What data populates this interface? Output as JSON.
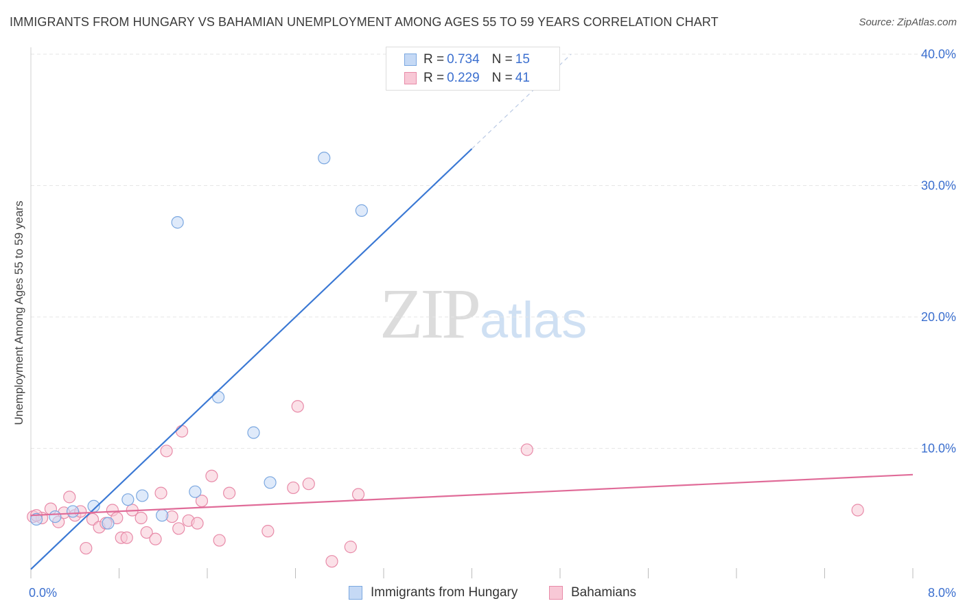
{
  "title": "IMMIGRANTS FROM HUNGARY VS BAHAMIAN UNEMPLOYMENT AMONG AGES 55 TO 59 YEARS CORRELATION CHART",
  "source": "Source: ZipAtlas.com",
  "watermark": {
    "zip": "ZIP",
    "atlas": "atlas"
  },
  "legend": {
    "r_label": "R =",
    "n_label": "N =",
    "series": [
      {
        "r": "0.734",
        "n": "15"
      },
      {
        "r": "0.229",
        "n": "41"
      }
    ]
  },
  "bottom_legend": [
    "Immigrants from Hungary",
    "Bahamians"
  ],
  "colors": {
    "hungary_fill": "#c5d9f5",
    "hungary_stroke": "#7aa7e0",
    "hungary_line": "#3a78d4",
    "bahamas_fill": "#f8c8d6",
    "bahamas_stroke": "#e88aa8",
    "bahamas_line": "#e06b98",
    "tick_label": "#3b6fcf",
    "grid": "#e6e6e6"
  },
  "chart_data": {
    "type": "scatter",
    "title": "IMMIGRANTS FROM HUNGARY VS BAHAMIAN UNEMPLOYMENT AMONG AGES 55 TO 59 YEARS CORRELATION CHART",
    "xlabel": "",
    "ylabel": "Unemployment Among Ages 55 to 59 years",
    "xlim": [
      0,
      8
    ],
    "ylim": [
      0,
      40
    ],
    "x_tick_labels": [
      "0.0%",
      "8.0%"
    ],
    "y_ticks": [
      10,
      20,
      30,
      40
    ],
    "y_tick_labels": [
      "10.0%",
      "20.0%",
      "30.0%",
      "40.0%"
    ],
    "grid": true,
    "legend_position": "top-center",
    "series": [
      {
        "name": "Immigrants from Hungary",
        "r": 0.734,
        "n": 15,
        "points": [
          [
            0.05,
            4.6
          ],
          [
            0.22,
            4.8
          ],
          [
            0.38,
            5.2
          ],
          [
            0.57,
            5.6
          ],
          [
            0.7,
            4.3
          ],
          [
            0.88,
            6.1
          ],
          [
            1.01,
            6.4
          ],
          [
            1.19,
            4.9
          ],
          [
            1.33,
            27.2
          ],
          [
            1.49,
            6.7
          ],
          [
            1.7,
            13.9
          ],
          [
            2.02,
            11.2
          ],
          [
            2.17,
            7.4
          ],
          [
            2.66,
            32.1
          ],
          [
            3.0,
            28.1
          ]
        ],
        "trend": {
          "x0": 0.0,
          "y0": 0.8,
          "x1": 4.0,
          "y1": 32.8,
          "dash_x1": 4.9,
          "dash_y1": 40.0
        }
      },
      {
        "name": "Bahamians",
        "r": 0.229,
        "n": 41,
        "points": [
          [
            0.02,
            4.8
          ],
          [
            0.1,
            4.7
          ],
          [
            0.18,
            5.4
          ],
          [
            0.25,
            4.4
          ],
          [
            0.3,
            5.1
          ],
          [
            0.35,
            6.3
          ],
          [
            0.4,
            4.9
          ],
          [
            0.45,
            5.2
          ],
          [
            0.5,
            2.4
          ],
          [
            0.56,
            4.6
          ],
          [
            0.62,
            4.0
          ],
          [
            0.68,
            4.3
          ],
          [
            0.74,
            5.3
          ],
          [
            0.78,
            4.7
          ],
          [
            0.82,
            3.2
          ],
          [
            0.87,
            3.2
          ],
          [
            0.92,
            5.3
          ],
          [
            1.0,
            4.7
          ],
          [
            1.05,
            3.6
          ],
          [
            1.13,
            3.1
          ],
          [
            1.18,
            6.6
          ],
          [
            1.23,
            9.8
          ],
          [
            1.28,
            4.8
          ],
          [
            1.34,
            3.9
          ],
          [
            1.37,
            11.3
          ],
          [
            1.43,
            4.5
          ],
          [
            1.51,
            4.3
          ],
          [
            1.55,
            6.0
          ],
          [
            1.64,
            7.9
          ],
          [
            1.71,
            3.0
          ],
          [
            1.8,
            6.6
          ],
          [
            2.15,
            3.7
          ],
          [
            2.38,
            7.0
          ],
          [
            2.42,
            13.2
          ],
          [
            2.52,
            7.3
          ],
          [
            2.73,
            1.4
          ],
          [
            2.9,
            2.5
          ],
          [
            2.97,
            6.5
          ],
          [
            4.5,
            9.9
          ],
          [
            7.5,
            5.3
          ],
          [
            0.05,
            4.9
          ]
        ],
        "trend": {
          "x0": 0.0,
          "y0": 4.9,
          "x1": 8.0,
          "y1": 8.0
        }
      }
    ]
  }
}
